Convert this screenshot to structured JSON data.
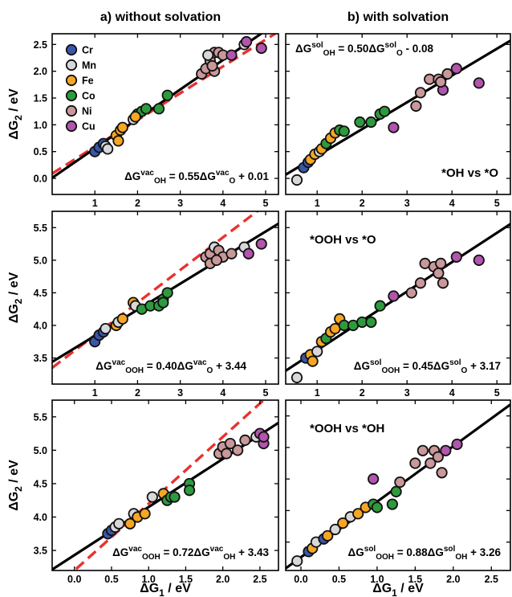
{
  "titles": {
    "col_a": "a) without solvation",
    "col_b": "b) with solvation"
  },
  "axis": {
    "ylabel_main": "ΔG",
    "ylabel_sub": "2",
    "ylabel_unit": " / eV",
    "xlabel_main": "ΔG",
    "xlabel_sub": "1",
    "xlabel_unit": " / eV"
  },
  "legend": [
    {
      "name": "Cr",
      "color": "#3a56a8"
    },
    {
      "name": "Mn",
      "color": "#d8d8d8"
    },
    {
      "name": "Fe",
      "color": "#f5a623"
    },
    {
      "name": "Co",
      "color": "#2e9a3e"
    },
    {
      "name": "Ni",
      "color": "#c9989a"
    },
    {
      "name": "Cu",
      "color": "#b155ad"
    }
  ],
  "chart_data": [
    {
      "id": "a1",
      "type": "scatter",
      "xlim": [
        0.0,
        5.3
      ],
      "ylim": [
        -0.3,
        2.7
      ],
      "xticks": [
        "1",
        "2",
        "3",
        "4",
        "5"
      ],
      "xtick_values": [
        1,
        2,
        3,
        4,
        5
      ],
      "yticks": [
        "0.0",
        "0.5",
        "1.0",
        "1.5",
        "2.0",
        "2.5"
      ],
      "ytick_values": [
        0.0,
        0.5,
        1.0,
        1.5,
        2.0,
        2.5
      ],
      "show_legend": true,
      "equation": {
        "lhs": "ΔG",
        "sup1": "vac",
        "sub1": "OH",
        "mid": " = 0.55ΔG",
        "sup2": "vac",
        "sub2": "O",
        "rhs": " + 0.01"
      },
      "equation_pos": "bottom-right",
      "fit": {
        "slope": 0.55,
        "intercept": 0.01
      },
      "dashed": {
        "slope": 0.5,
        "intercept": 0.09
      },
      "points": [
        [
          1.0,
          0.5,
          "Cr"
        ],
        [
          1.1,
          0.58,
          "Cr"
        ],
        [
          1.2,
          0.65,
          "Cr"
        ],
        [
          1.25,
          0.6,
          "Mn"
        ],
        [
          1.3,
          0.55,
          "Mn"
        ],
        [
          1.5,
          0.8,
          "Fe"
        ],
        [
          1.6,
          0.9,
          "Fe"
        ],
        [
          1.65,
          0.95,
          "Fe"
        ],
        [
          1.55,
          0.7,
          "Fe"
        ],
        [
          1.9,
          1.1,
          "Mn"
        ],
        [
          2.0,
          1.2,
          "Co"
        ],
        [
          2.1,
          1.25,
          "Co"
        ],
        [
          2.2,
          1.3,
          "Co"
        ],
        [
          1.95,
          1.15,
          "Fe"
        ],
        [
          2.5,
          1.3,
          "Co"
        ],
        [
          2.7,
          1.55,
          "Co"
        ],
        [
          3.5,
          1.95,
          "Ni"
        ],
        [
          3.6,
          2.05,
          "Ni"
        ],
        [
          3.7,
          2.2,
          "Ni"
        ],
        [
          3.8,
          2.35,
          "Ni"
        ],
        [
          3.9,
          2.35,
          "Ni"
        ],
        [
          4.0,
          2.3,
          "Ni"
        ],
        [
          4.2,
          2.3,
          "Cu"
        ],
        [
          3.65,
          2.3,
          "Mn"
        ],
        [
          3.8,
          2.0,
          "Ni"
        ],
        [
          4.5,
          2.5,
          "Mn"
        ],
        [
          4.55,
          2.55,
          "Cu"
        ],
        [
          4.9,
          2.43,
          "Cu"
        ],
        [
          3.75,
          2.1,
          "Ni"
        ]
      ]
    },
    {
      "id": "b1",
      "type": "scatter",
      "xlim": [
        0.3,
        5.3
      ],
      "ylim": [
        -0.3,
        2.7
      ],
      "xticks": [
        "1",
        "2",
        "3",
        "4",
        "5"
      ],
      "xtick_values": [
        1,
        2,
        3,
        4,
        5
      ],
      "yticks": [],
      "ytick_values": [
        0.0,
        0.5,
        1.0,
        1.5,
        2.0,
        2.5
      ],
      "show_legend": false,
      "equation": {
        "lhs": "ΔG",
        "sup1": "sol",
        "sub1": "OH",
        "mid": " = 0.50ΔG",
        "sup2": "sol",
        "sub2": "O",
        "rhs": " - 0.08"
      },
      "equation_pos": "top-left",
      "annotation": "*OH vs *O",
      "fit": {
        "slope": 0.5,
        "intercept": -0.08
      },
      "points": [
        [
          0.55,
          -0.03,
          "Mn"
        ],
        [
          0.7,
          0.2,
          "Cr"
        ],
        [
          0.8,
          0.3,
          "Cr"
        ],
        [
          0.85,
          0.35,
          "Fe"
        ],
        [
          0.95,
          0.45,
          "Fe"
        ],
        [
          1.05,
          0.5,
          "Mn"
        ],
        [
          1.1,
          0.55,
          "Fe"
        ],
        [
          1.2,
          0.65,
          "Co"
        ],
        [
          1.3,
          0.75,
          "Fe"
        ],
        [
          1.4,
          0.85,
          "Fe"
        ],
        [
          1.5,
          0.9,
          "Co"
        ],
        [
          1.6,
          0.88,
          "Co"
        ],
        [
          1.95,
          1.05,
          "Co"
        ],
        [
          2.2,
          1.05,
          "Co"
        ],
        [
          2.4,
          1.2,
          "Co"
        ],
        [
          2.5,
          1.25,
          "Co"
        ],
        [
          2.7,
          0.95,
          "Cu"
        ],
        [
          3.2,
          1.35,
          "Ni"
        ],
        [
          3.3,
          1.6,
          "Ni"
        ],
        [
          3.5,
          1.85,
          "Ni"
        ],
        [
          3.7,
          1.85,
          "Ni"
        ],
        [
          3.8,
          1.65,
          "Cu"
        ],
        [
          3.9,
          1.95,
          "Ni"
        ],
        [
          4.1,
          2.05,
          "Cu"
        ],
        [
          4.6,
          1.78,
          "Cu"
        ],
        [
          3.75,
          1.8,
          "Ni"
        ]
      ]
    },
    {
      "id": "a2",
      "type": "scatter",
      "xlim": [
        0.0,
        5.3
      ],
      "ylim": [
        3.1,
        5.75
      ],
      "xticks": [
        "1",
        "2",
        "3",
        "4",
        "5"
      ],
      "xtick_values": [
        1,
        2,
        3,
        4,
        5
      ],
      "yticks": [
        "3.5",
        "4.0",
        "4.5",
        "5.0",
        "5.5"
      ],
      "ytick_values": [
        3.5,
        4.0,
        4.5,
        5.0,
        5.5
      ],
      "show_legend": false,
      "equation": {
        "lhs": "ΔG",
        "sup1": "vac",
        "sub1": "OOH",
        "mid": " = 0.40ΔG",
        "sup2": "vac",
        "sub2": "O",
        "rhs": " + 3.44"
      },
      "equation_pos": "bottom-center",
      "fit": {
        "slope": 0.4,
        "intercept": 3.44
      },
      "dashed": {
        "slope": 0.5,
        "intercept": 3.35
      },
      "points": [
        [
          1.0,
          3.75,
          "Cr"
        ],
        [
          1.1,
          3.85,
          "Cr"
        ],
        [
          1.2,
          3.9,
          "Cr"
        ],
        [
          1.25,
          3.95,
          "Mn"
        ],
        [
          1.5,
          4.0,
          "Fe"
        ],
        [
          1.55,
          4.05,
          "Mn"
        ],
        [
          1.65,
          4.1,
          "Fe"
        ],
        [
          1.9,
          4.35,
          "Fe"
        ],
        [
          1.95,
          4.3,
          "Mn"
        ],
        [
          2.1,
          4.25,
          "Co"
        ],
        [
          2.3,
          4.3,
          "Co"
        ],
        [
          2.5,
          4.3,
          "Co"
        ],
        [
          2.6,
          4.4,
          "Co"
        ],
        [
          2.7,
          4.5,
          "Co"
        ],
        [
          2.6,
          4.35,
          "Co"
        ],
        [
          3.6,
          5.05,
          "Ni"
        ],
        [
          3.7,
          5.1,
          "Ni"
        ],
        [
          3.8,
          5.2,
          "Mn"
        ],
        [
          3.9,
          5.15,
          "Ni"
        ],
        [
          3.7,
          4.95,
          "Ni"
        ],
        [
          4.0,
          5.05,
          "Ni"
        ],
        [
          4.2,
          5.1,
          "Ni"
        ],
        [
          4.5,
          5.2,
          "Mn"
        ],
        [
          4.6,
          5.1,
          "Cu"
        ],
        [
          4.9,
          5.25,
          "Cu"
        ],
        [
          3.85,
          5.0,
          "Ni"
        ]
      ]
    },
    {
      "id": "b2",
      "type": "scatter",
      "xlim": [
        0.3,
        5.3
      ],
      "ylim": [
        3.1,
        5.75
      ],
      "xticks": [
        "1",
        "2",
        "3",
        "4",
        "5"
      ],
      "xtick_values": [
        1,
        2,
        3,
        4,
        5
      ],
      "yticks": [],
      "ytick_values": [
        3.5,
        4.0,
        4.5,
        5.0,
        5.5
      ],
      "show_legend": false,
      "equation": {
        "lhs": "ΔG",
        "sup1": "sol",
        "sub1": "OOH",
        "mid": " = 0.45ΔG",
        "sup2": "sol",
        "sub2": "O",
        "rhs": " + 3.17"
      },
      "equation_pos": "bottom-right",
      "annotation": "*OOH vs *O",
      "fit": {
        "slope": 0.45,
        "intercept": 3.17
      },
      "points": [
        [
          0.55,
          3.2,
          "Mn"
        ],
        [
          0.75,
          3.5,
          "Cr"
        ],
        [
          0.85,
          3.55,
          "Fe"
        ],
        [
          0.9,
          3.45,
          "Fe"
        ],
        [
          1.0,
          3.6,
          "Mn"
        ],
        [
          1.1,
          3.75,
          "Fe"
        ],
        [
          1.2,
          3.8,
          "Co"
        ],
        [
          1.3,
          3.9,
          "Fe"
        ],
        [
          1.4,
          3.95,
          "Fe"
        ],
        [
          1.5,
          4.1,
          "Fe"
        ],
        [
          1.6,
          4.0,
          "Co"
        ],
        [
          1.8,
          4.0,
          "Co"
        ],
        [
          2.0,
          4.05,
          "Co"
        ],
        [
          2.2,
          4.05,
          "Co"
        ],
        [
          2.4,
          4.3,
          "Co"
        ],
        [
          2.7,
          4.45,
          "Cu"
        ],
        [
          3.1,
          4.5,
          "Ni"
        ],
        [
          3.3,
          4.65,
          "Ni"
        ],
        [
          3.4,
          4.95,
          "Ni"
        ],
        [
          3.6,
          4.9,
          "Ni"
        ],
        [
          3.7,
          4.8,
          "Ni"
        ],
        [
          3.8,
          4.65,
          "Ni"
        ],
        [
          4.1,
          5.05,
          "Cu"
        ],
        [
          4.6,
          5.0,
          "Cu"
        ],
        [
          3.75,
          4.95,
          "Ni"
        ]
      ]
    },
    {
      "id": "a3",
      "type": "scatter",
      "xlim": [
        -0.3,
        2.75
      ],
      "ylim": [
        3.2,
        5.75
      ],
      "xticks": [
        "0.0",
        "0.5",
        "1.0",
        "1.5",
        "2.0",
        "2.5"
      ],
      "xtick_values": [
        0.0,
        0.5,
        1.0,
        1.5,
        2.0,
        2.5
      ],
      "yticks": [
        "3.5",
        "4.0",
        "4.5",
        "5.0",
        "5.5"
      ],
      "ytick_values": [
        3.5,
        4.0,
        4.5,
        5.0,
        5.5
      ],
      "show_legend": false,
      "equation": {
        "lhs": "ΔG",
        "sup1": "vac",
        "sub1": "OOH",
        "mid": " = 0.72ΔG",
        "sup2": "vac",
        "sub2": "OH",
        "rhs": " + 3.43"
      },
      "equation_pos": "bottom-right",
      "fit": {
        "slope": 0.72,
        "intercept": 3.43
      },
      "dashed": {
        "slope": 1.0,
        "intercept": 3.2
      },
      "points": [
        [
          0.45,
          3.75,
          "Cr"
        ],
        [
          0.5,
          3.8,
          "Cr"
        ],
        [
          0.55,
          3.85,
          "Mn"
        ],
        [
          0.6,
          3.9,
          "Mn"
        ],
        [
          0.75,
          3.9,
          "Fe"
        ],
        [
          0.8,
          4.05,
          "Mn"
        ],
        [
          0.85,
          4.0,
          "Fe"
        ],
        [
          0.95,
          4.05,
          "Fe"
        ],
        [
          1.05,
          4.3,
          "Mn"
        ],
        [
          1.2,
          4.35,
          "Fe"
        ],
        [
          1.25,
          4.25,
          "Co"
        ],
        [
          1.3,
          4.3,
          "Co"
        ],
        [
          1.35,
          4.3,
          "Co"
        ],
        [
          1.55,
          4.5,
          "Co"
        ],
        [
          1.55,
          4.4,
          "Co"
        ],
        [
          1.95,
          4.95,
          "Ni"
        ],
        [
          2.0,
          5.05,
          "Ni"
        ],
        [
          2.05,
          4.95,
          "Ni"
        ],
        [
          2.1,
          5.1,
          "Ni"
        ],
        [
          2.2,
          5.0,
          "Ni"
        ],
        [
          2.3,
          5.15,
          "Ni"
        ],
        [
          2.45,
          5.2,
          "Mn"
        ],
        [
          2.5,
          5.25,
          "Cu"
        ],
        [
          2.55,
          5.1,
          "Cu"
        ],
        [
          2.55,
          5.2,
          "Cu"
        ]
      ]
    },
    {
      "id": "b3",
      "type": "scatter",
      "xlim": [
        -0.2,
        2.75
      ],
      "ylim": [
        3.05,
        5.75
      ],
      "xticks": [
        "0.0",
        "0.5",
        "1.0",
        "1.5",
        "2.0",
        "2.5"
      ],
      "xtick_values": [
        0.0,
        0.5,
        1.0,
        1.5,
        2.0,
        2.5
      ],
      "yticks": [],
      "ytick_values": [
        3.5,
        4.0,
        4.5,
        5.0,
        5.5
      ],
      "show_legend": false,
      "equation": {
        "lhs": "ΔG",
        "sup1": "sol",
        "sub1": "OOH",
        "mid": " = 0.88ΔG",
        "sup2": "sol",
        "sub2": "OH",
        "rhs": " + 3.26"
      },
      "equation_pos": "bottom-right",
      "annotation": "*OOH vs *OH",
      "fit": {
        "slope": 0.88,
        "intercept": 3.26
      },
      "points": [
        [
          -0.05,
          3.2,
          "Mn"
        ],
        [
          0.1,
          3.35,
          "Cr"
        ],
        [
          0.15,
          3.4,
          "Fe"
        ],
        [
          0.2,
          3.5,
          "Mn"
        ],
        [
          0.3,
          3.55,
          "Cr"
        ],
        [
          0.35,
          3.6,
          "Fe"
        ],
        [
          0.45,
          3.7,
          "Mn"
        ],
        [
          0.55,
          3.8,
          "Fe"
        ],
        [
          0.65,
          3.9,
          "Mn"
        ],
        [
          0.75,
          3.95,
          "Fe"
        ],
        [
          0.85,
          4.05,
          "Fe"
        ],
        [
          0.95,
          4.1,
          "Co"
        ],
        [
          1.0,
          4.05,
          "Co"
        ],
        [
          0.95,
          4.5,
          "Cu"
        ],
        [
          1.2,
          4.1,
          "Co"
        ],
        [
          1.25,
          4.3,
          "Co"
        ],
        [
          1.3,
          4.45,
          "Ni"
        ],
        [
          1.5,
          4.75,
          "Ni"
        ],
        [
          1.6,
          4.95,
          "Ni"
        ],
        [
          1.75,
          4.95,
          "Ni"
        ],
        [
          1.8,
          4.85,
          "Ni"
        ],
        [
          1.85,
          4.6,
          "Ni"
        ],
        [
          1.9,
          4.95,
          "Cu"
        ],
        [
          2.05,
          5.05,
          "Cu"
        ],
        [
          1.7,
          4.75,
          "Ni"
        ]
      ]
    }
  ]
}
